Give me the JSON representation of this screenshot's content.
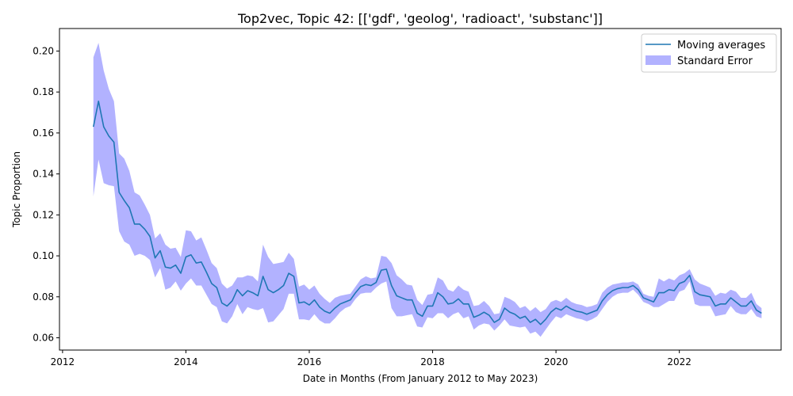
{
  "chart_data": {
    "type": "line",
    "title": "Top2vec, Topic 42: [['gdf', 'geolog', 'radioact', 'substanc']]",
    "xlabel": "Date in Months (From January 2012 to May 2023)",
    "ylabel": "Topic Proportion",
    "xlim": [
      2011.95,
      2023.65
    ],
    "ylim": [
      0.054,
      0.211
    ],
    "x_ticks": [
      2012,
      2014,
      2016,
      2018,
      2020,
      2022
    ],
    "y_ticks": [
      0.06,
      0.08,
      0.1,
      0.12,
      0.14,
      0.16,
      0.18,
      0.2
    ],
    "y_tick_labels": [
      "0.06",
      "0.08",
      "0.10",
      "0.12",
      "0.14",
      "0.16",
      "0.18",
      "0.20"
    ],
    "grid": false,
    "legend": {
      "placement": "top-right",
      "entries": [
        "Moving averages",
        "Standard Error"
      ]
    },
    "colors": {
      "line": "#1f77b4",
      "band": "#0000ff"
    },
    "series": [
      {
        "name": "Moving averages",
        "x": [
          2012.5,
          2012.583,
          2012.667,
          2012.75,
          2012.833,
          2012.917,
          2013.0,
          2013.083,
          2013.167,
          2013.25,
          2013.333,
          2013.417,
          2013.5,
          2013.583,
          2013.667,
          2013.75,
          2013.833,
          2013.917,
          2014.0,
          2014.083,
          2014.167,
          2014.25,
          2014.333,
          2014.417,
          2014.5,
          2014.583,
          2014.667,
          2014.75,
          2014.833,
          2014.917,
          2015.0,
          2015.083,
          2015.167,
          2015.25,
          2015.333,
          2015.417,
          2015.5,
          2015.583,
          2015.667,
          2015.75,
          2015.833,
          2015.917,
          2016.0,
          2016.083,
          2016.167,
          2016.25,
          2016.333,
          2016.417,
          2016.5,
          2016.583,
          2016.667,
          2016.75,
          2016.833,
          2016.917,
          2017.0,
          2017.083,
          2017.167,
          2017.25,
          2017.333,
          2017.417,
          2017.5,
          2017.583,
          2017.667,
          2017.75,
          2017.833,
          2017.917,
          2018.0,
          2018.083,
          2018.167,
          2018.25,
          2018.333,
          2018.417,
          2018.5,
          2018.583,
          2018.667,
          2018.75,
          2018.833,
          2018.917,
          2019.0,
          2019.083,
          2019.167,
          2019.25,
          2019.333,
          2019.417,
          2019.5,
          2019.583,
          2019.667,
          2019.75,
          2019.833,
          2019.917,
          2020.0,
          2020.083,
          2020.167,
          2020.25,
          2020.333,
          2020.417,
          2020.5,
          2020.583,
          2020.667,
          2020.75,
          2020.833,
          2020.917,
          2021.0,
          2021.083,
          2021.167,
          2021.25,
          2021.333,
          2021.417,
          2021.5,
          2021.583,
          2021.667,
          2021.75,
          2021.833,
          2021.917,
          2022.0,
          2022.083,
          2022.167,
          2022.25,
          2022.333,
          2022.417,
          2022.5,
          2022.583,
          2022.667,
          2022.75,
          2022.833,
          2022.917,
          2023.0,
          2023.083,
          2023.167,
          2023.25,
          2023.333
        ],
        "values": [
          0.163,
          0.1755,
          0.163,
          0.1585,
          0.1555,
          0.131,
          0.127,
          0.1235,
          0.1155,
          0.1155,
          0.113,
          0.1095,
          0.099,
          0.1025,
          0.0945,
          0.094,
          0.0955,
          0.0915,
          0.0995,
          0.1005,
          0.0965,
          0.097,
          0.092,
          0.0865,
          0.0845,
          0.077,
          0.0755,
          0.078,
          0.0835,
          0.0805,
          0.083,
          0.082,
          0.0805,
          0.09,
          0.0835,
          0.082,
          0.0835,
          0.0855,
          0.0915,
          0.09,
          0.077,
          0.0775,
          0.076,
          0.0785,
          0.075,
          0.073,
          0.072,
          0.0745,
          0.0765,
          0.0775,
          0.0785,
          0.082,
          0.085,
          0.086,
          0.0855,
          0.087,
          0.093,
          0.0935,
          0.0855,
          0.0805,
          0.0795,
          0.0785,
          0.0785,
          0.072,
          0.0705,
          0.0755,
          0.0755,
          0.082,
          0.08,
          0.0765,
          0.077,
          0.079,
          0.0765,
          0.0765,
          0.07,
          0.071,
          0.0725,
          0.071,
          0.0675,
          0.069,
          0.0745,
          0.0725,
          0.0715,
          0.0695,
          0.0705,
          0.0675,
          0.069,
          0.0665,
          0.069,
          0.0725,
          0.0745,
          0.0735,
          0.0755,
          0.074,
          0.073,
          0.0725,
          0.0715,
          0.0725,
          0.0735,
          0.078,
          0.081,
          0.083,
          0.084,
          0.0845,
          0.0845,
          0.0855,
          0.0835,
          0.0795,
          0.0785,
          0.0775,
          0.082,
          0.082,
          0.0835,
          0.083,
          0.0865,
          0.0875,
          0.0905,
          0.0825,
          0.081,
          0.0805,
          0.08,
          0.0755,
          0.0765,
          0.0765,
          0.0795,
          0.0775,
          0.0755,
          0.0755,
          0.078,
          0.0735,
          0.072
        ],
        "lower": [
          0.129,
          0.147,
          0.1355,
          0.1345,
          0.134,
          0.112,
          0.107,
          0.1055,
          0.1,
          0.101,
          0.1,
          0.098,
          0.0895,
          0.094,
          0.0835,
          0.0845,
          0.0875,
          0.083,
          0.0865,
          0.089,
          0.0855,
          0.0855,
          0.081,
          0.0765,
          0.075,
          0.068,
          0.067,
          0.0705,
          0.0765,
          0.0715,
          0.075,
          0.074,
          0.0735,
          0.0745,
          0.0675,
          0.068,
          0.071,
          0.074,
          0.0815,
          0.0815,
          0.069,
          0.069,
          0.0685,
          0.0715,
          0.0685,
          0.067,
          0.067,
          0.0695,
          0.0725,
          0.0745,
          0.0755,
          0.079,
          0.0815,
          0.082,
          0.082,
          0.0845,
          0.0865,
          0.0875,
          0.0745,
          0.0705,
          0.0705,
          0.071,
          0.0715,
          0.0655,
          0.065,
          0.07,
          0.0695,
          0.072,
          0.072,
          0.0695,
          0.0715,
          0.0725,
          0.0695,
          0.0705,
          0.064,
          0.066,
          0.067,
          0.0665,
          0.0635,
          0.066,
          0.069,
          0.066,
          0.0655,
          0.065,
          0.0655,
          0.062,
          0.063,
          0.0605,
          0.064,
          0.0675,
          0.0705,
          0.0695,
          0.0715,
          0.0705,
          0.0695,
          0.069,
          0.068,
          0.069,
          0.0705,
          0.074,
          0.0775,
          0.08,
          0.0815,
          0.082,
          0.082,
          0.0835,
          0.081,
          0.0775,
          0.0765,
          0.075,
          0.075,
          0.0765,
          0.078,
          0.078,
          0.0825,
          0.0835,
          0.0875,
          0.0765,
          0.0755,
          0.0755,
          0.0755,
          0.0705,
          0.071,
          0.0715,
          0.0755,
          0.0725,
          0.0715,
          0.0715,
          0.074,
          0.0705,
          0.0695
        ],
        "upper": [
          0.197,
          0.204,
          0.1905,
          0.1815,
          0.1755,
          0.15,
          0.1475,
          0.1415,
          0.131,
          0.1295,
          0.125,
          0.12,
          0.1085,
          0.111,
          0.1055,
          0.1035,
          0.104,
          0.0995,
          0.1125,
          0.112,
          0.1075,
          0.109,
          0.103,
          0.0965,
          0.094,
          0.0865,
          0.084,
          0.0855,
          0.0895,
          0.0895,
          0.0905,
          0.09,
          0.0875,
          0.1055,
          0.0995,
          0.096,
          0.0965,
          0.097,
          0.1015,
          0.0985,
          0.085,
          0.086,
          0.0835,
          0.0855,
          0.0815,
          0.079,
          0.077,
          0.0795,
          0.0805,
          0.081,
          0.0815,
          0.085,
          0.0885,
          0.09,
          0.089,
          0.0895,
          0.1,
          0.0995,
          0.0965,
          0.0905,
          0.0885,
          0.086,
          0.0855,
          0.0785,
          0.076,
          0.081,
          0.0815,
          0.0895,
          0.088,
          0.0835,
          0.0825,
          0.0855,
          0.0835,
          0.0825,
          0.0755,
          0.076,
          0.078,
          0.0755,
          0.0715,
          0.072,
          0.08,
          0.079,
          0.0775,
          0.0745,
          0.0755,
          0.073,
          0.075,
          0.0725,
          0.074,
          0.0775,
          0.0785,
          0.0775,
          0.0795,
          0.0775,
          0.0765,
          0.076,
          0.075,
          0.0755,
          0.0765,
          0.082,
          0.0845,
          0.086,
          0.0865,
          0.087,
          0.087,
          0.0875,
          0.086,
          0.0815,
          0.0805,
          0.08,
          0.089,
          0.0875,
          0.089,
          0.088,
          0.0905,
          0.0915,
          0.0935,
          0.0885,
          0.0865,
          0.0855,
          0.0845,
          0.0805,
          0.082,
          0.0815,
          0.0835,
          0.0825,
          0.0795,
          0.0795,
          0.082,
          0.0765,
          0.0745
        ]
      }
    ]
  }
}
